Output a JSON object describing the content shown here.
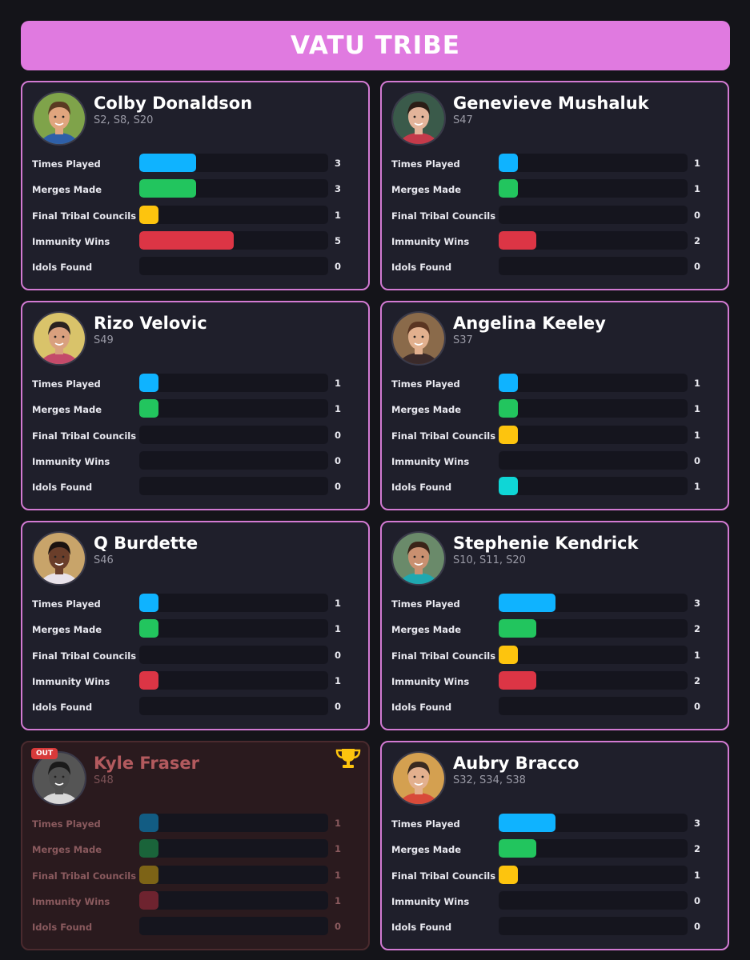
{
  "header": {
    "title": "VATU TRIBE"
  },
  "colors": {
    "times_played": "#0fb3ff",
    "merges_made": "#22c55e",
    "final_tribal_councils": "#fdc40e",
    "immunity_wins": "#dc3545",
    "idols_found": "#0fd6d6"
  },
  "stat_labels": [
    "Times Played",
    "Merges Made",
    "Final Tribal Councils",
    "Immunity Wins",
    "Idols Found"
  ],
  "players": [
    {
      "name": "Colby Donaldson",
      "seasons": "S2, S8, S20",
      "out": false,
      "winner": false,
      "stats": [
        3,
        3,
        1,
        5,
        0
      ]
    },
    {
      "name": "Genevieve Mushaluk",
      "seasons": "S47",
      "out": false,
      "winner": false,
      "stats": [
        1,
        1,
        0,
        2,
        0
      ]
    },
    {
      "name": "Rizo Velovic",
      "seasons": "S49",
      "out": false,
      "winner": false,
      "stats": [
        1,
        1,
        0,
        0,
        0
      ]
    },
    {
      "name": "Angelina Keeley",
      "seasons": "S37",
      "out": false,
      "winner": false,
      "stats": [
        1,
        1,
        1,
        0,
        1
      ]
    },
    {
      "name": "Q Burdette",
      "seasons": "S46",
      "out": false,
      "winner": false,
      "stats": [
        1,
        1,
        0,
        1,
        0
      ]
    },
    {
      "name": "Stephenie Kendrick",
      "seasons": "S10, S11, S20",
      "out": false,
      "winner": false,
      "stats": [
        3,
        2,
        1,
        2,
        0
      ]
    },
    {
      "name": "Kyle Fraser",
      "seasons": "S48",
      "out": true,
      "out_label": "OUT",
      "winner": true,
      "stats": [
        1,
        1,
        1,
        1,
        0
      ]
    },
    {
      "name": "Aubry Bracco",
      "seasons": "S32, S34, S38",
      "out": false,
      "winner": false,
      "stats": [
        3,
        2,
        1,
        0,
        0
      ]
    }
  ]
}
